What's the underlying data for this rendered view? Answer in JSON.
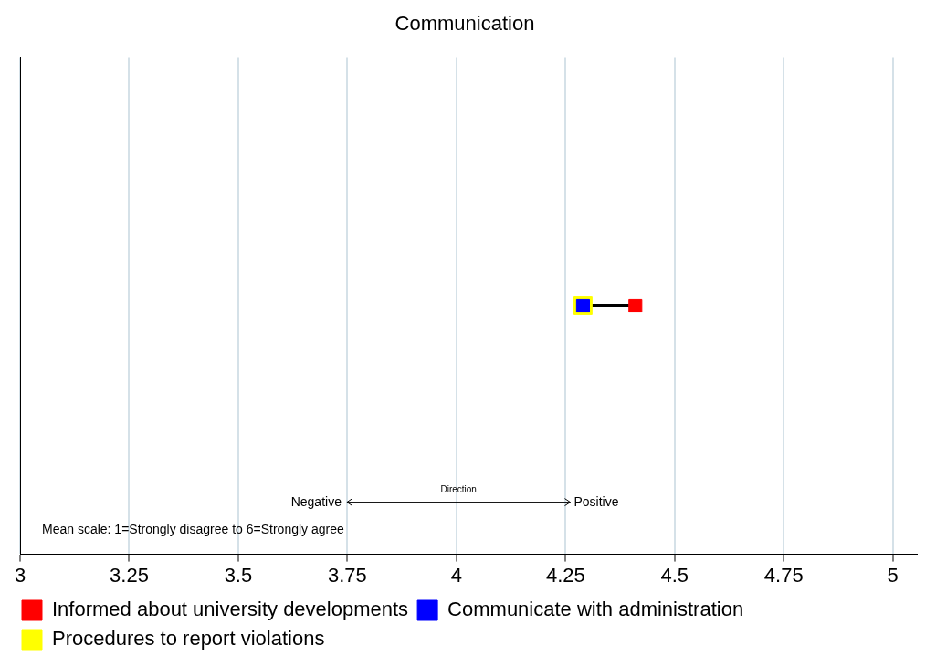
{
  "chart_data": {
    "type": "scatter",
    "title": "Communication",
    "orientation": "horizontal",
    "categories": [
      null
    ],
    "series": [
      {
        "name": "Informed about university developments",
        "color": "#ff0000",
        "values": [
          4.41
        ]
      },
      {
        "name": "Communicate with administration",
        "color": "#0000ff",
        "values": [
          4.29
        ]
      },
      {
        "name": "Procedures to report violations",
        "color": "#ffff00",
        "values": [
          4.29
        ]
      }
    ],
    "xlim": [
      3,
      5.055
    ],
    "xticks": [
      3,
      3.25,
      3.5,
      3.75,
      4,
      4.25,
      4.5,
      4.75,
      5
    ],
    "grid": "x",
    "tick_labels": "x",
    "marker": "square",
    "legend": "bottom",
    "annotations": [
      "Negative",
      "Positive",
      "Direction",
      "Mean scale: 1=Strongly disagree to 6=Strongly agree"
    ]
  }
}
